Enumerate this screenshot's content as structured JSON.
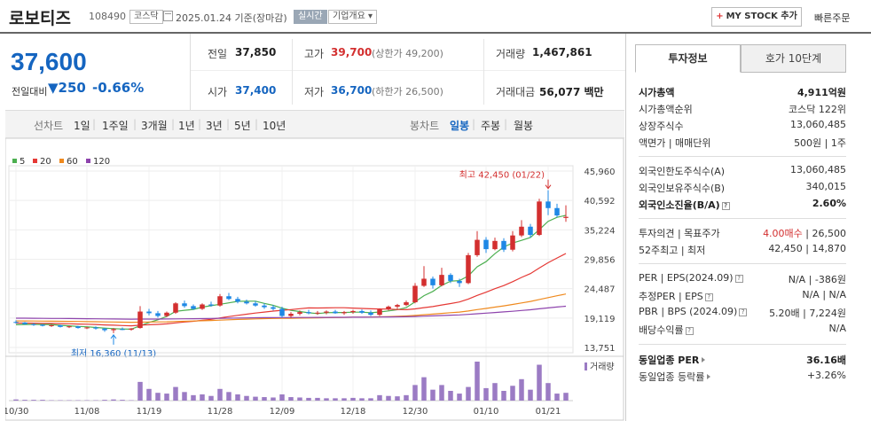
{
  "header": {
    "name": "로보티즈",
    "code": "108490",
    "market": "코스닥",
    "date": "2025.01.24 기준(장마감)",
    "live_badge": "실시간",
    "overview": "기업개요",
    "mystock": "MY STOCK 추가",
    "quick": "빠른주문"
  },
  "price": {
    "now": "37,600",
    "change_label": "전일대비",
    "change": "250",
    "pct": "-0.66%"
  },
  "quotes": {
    "prev_label": "전일",
    "prev": "37,850",
    "high_label": "고가",
    "high": "39,700",
    "upper_limit": "(상한가 49,200)",
    "volume_label": "거래량",
    "volume": "1,467,861",
    "open_label": "시가",
    "open": "37,400",
    "low_label": "저가",
    "low": "36,700",
    "lower_limit": "(하한가 26,500)",
    "amount_label": "거래대금",
    "amount": "56,077 백만"
  },
  "tabs": {
    "line": "선차트",
    "periods": [
      "1일",
      "1주일",
      "3개월",
      "1년",
      "3년",
      "5년",
      "10년"
    ],
    "candle": "봉차트",
    "candles": [
      "일봉",
      "주봉",
      "월봉"
    ],
    "selected_candle": "일봉"
  },
  "side": {
    "tab_active": "투자정보",
    "tab_inactive": "호가 10단계",
    "market_cap_label": "시가총액",
    "market_cap": "4,911억원",
    "rank_label": "시가총액순위",
    "rank": "코스닥 122위",
    "shares_label": "상장주식수",
    "shares": "13,060,485",
    "par_label": "액면가 | 매매단위",
    "par": "500원 | 1주",
    "foreign_limit_label": "외국인한도주식수(A)",
    "foreign_limit": "13,060,485",
    "foreign_hold_label": "외국인보유주식수(B)",
    "foreign_hold": "340,015",
    "foreign_ratio_label": "외국인소진율(B/A)",
    "foreign_ratio": "2.60%",
    "opinion_label": "투자의견 | 목표주가",
    "opinion": "4.00매수",
    "target": "26,500",
    "w52_label": "52주최고 | 최저",
    "w52": "42,450 | 14,870",
    "per_label": "PER | EPS(2024.09)",
    "per": "N/A | -386원",
    "est_per_label": "추정PER | EPS",
    "est_per": "N/A | N/A",
    "pbr_label": "PBR | BPS (2024.09)",
    "pbr": "5.20배 | 7,224원",
    "div_label": "배당수익률",
    "div": "N/A",
    "sector_per_label": "동일업종 PER",
    "sector_per": "36.16배",
    "sector_rate_label": "동일업종 등락률",
    "sector_rate": "+3.26%"
  },
  "colors": {
    "up": "#d32f2f",
    "down": "#1e88e5",
    "ma5": "#4caf50",
    "ma20": "#e53935",
    "ma60": "#ef8a1f",
    "ma120": "#8e44ad",
    "volume": "#9b7bc4"
  },
  "chart_data": {
    "type": "candlestick",
    "legend": [
      "5",
      "20",
      "60",
      "120"
    ],
    "y_ticks": [
      "45,960",
      "40,592",
      "35,224",
      "29,856",
      "24,487",
      "19,119",
      "13,751"
    ],
    "ylim": [
      13751,
      45960
    ],
    "x_labels": [
      "10/30",
      "11/08",
      "11/19",
      "11/28",
      "12/09",
      "12/18",
      "12/30",
      "01/10",
      "01/21"
    ],
    "high_annotation": "최고 42,450 (01/22)",
    "low_annotation": "최저 16,360 (11/13)",
    "volume_label": "거래량",
    "candles": [
      [
        18400,
        18700,
        18100,
        18300
      ],
      [
        18300,
        18400,
        17900,
        18000
      ],
      [
        18000,
        18200,
        17700,
        17900
      ],
      [
        17900,
        18000,
        17600,
        17700
      ],
      [
        17700,
        17900,
        17500,
        17800
      ],
      [
        17800,
        17900,
        17400,
        17500
      ],
      [
        17500,
        17700,
        17300,
        17600
      ],
      [
        17600,
        17700,
        17200,
        17300
      ],
      [
        17300,
        17500,
        17100,
        17400
      ],
      [
        17400,
        17600,
        17000,
        17200
      ],
      [
        17200,
        17300,
        16600,
        16900
      ],
      [
        16900,
        17300,
        16360,
        17100
      ],
      [
        17100,
        17400,
        16900,
        17000
      ],
      [
        17000,
        17300,
        16800,
        17200
      ],
      [
        17300,
        21300,
        17200,
        20300
      ],
      [
        20300,
        20800,
        19600,
        20000
      ],
      [
        20000,
        20400,
        19200,
        19500
      ],
      [
        19500,
        20300,
        19300,
        20100
      ],
      [
        20100,
        22000,
        19900,
        21800
      ],
      [
        21800,
        22300,
        21000,
        21300
      ],
      [
        21300,
        21600,
        20600,
        20800
      ],
      [
        20800,
        21800,
        20600,
        21600
      ],
      [
        21600,
        22100,
        21200,
        21400
      ],
      [
        21400,
        23500,
        21200,
        23100
      ],
      [
        23100,
        23700,
        22400,
        22600
      ],
      [
        22600,
        23000,
        21800,
        22100
      ],
      [
        22100,
        22500,
        21600,
        21800
      ],
      [
        21800,
        22200,
        21200,
        21400
      ],
      [
        21400,
        21800,
        20800,
        21100
      ],
      [
        21100,
        21500,
        20500,
        20800
      ],
      [
        20800,
        21200,
        19200,
        19500
      ],
      [
        19500,
        20200,
        19200,
        19900
      ],
      [
        19900,
        20500,
        19600,
        20200
      ],
      [
        20200,
        20600,
        19800,
        20000
      ],
      [
        20000,
        20400,
        19700,
        20100
      ],
      [
        20100,
        20500,
        19800,
        20300
      ],
      [
        20300,
        20600,
        19900,
        20000
      ],
      [
        20000,
        20400,
        19700,
        20200
      ],
      [
        20200,
        20600,
        19900,
        20400
      ],
      [
        20400,
        20700,
        19900,
        20100
      ],
      [
        20100,
        20500,
        19500,
        19700
      ],
      [
        19700,
        20900,
        19500,
        20700
      ],
      [
        20700,
        21400,
        20500,
        21200
      ],
      [
        21200,
        21700,
        20800,
        21500
      ],
      [
        21500,
        22300,
        21300,
        22000
      ],
      [
        22000,
        25500,
        21800,
        25000
      ],
      [
        25000,
        28600,
        24800,
        26300
      ],
      [
        26300,
        26700,
        24500,
        25100
      ],
      [
        25100,
        28300,
        24900,
        27000
      ],
      [
        27000,
        27300,
        25500,
        25900
      ],
      [
        25900,
        26300,
        24800,
        25500
      ],
      [
        25500,
        31000,
        25300,
        30600
      ],
      [
        30600,
        35000,
        30300,
        33400
      ],
      [
        33400,
        33900,
        31000,
        31700
      ],
      [
        31700,
        33800,
        31500,
        33200
      ],
      [
        33200,
        33700,
        31200,
        31600
      ],
      [
        31600,
        35000,
        31300,
        34200
      ],
      [
        34200,
        37000,
        33900,
        35800
      ],
      [
        35800,
        36300,
        33800,
        34300
      ],
      [
        34300,
        40900,
        34100,
        40400
      ],
      [
        40400,
        42450,
        37900,
        39200
      ],
      [
        39200,
        40000,
        37500,
        37850
      ],
      [
        37400,
        39700,
        36700,
        37600
      ]
    ],
    "volumes": [
      3,
      2,
      2,
      2,
      1,
      1,
      1,
      1,
      1,
      1,
      2,
      3,
      2,
      1,
      48,
      30,
      20,
      18,
      35,
      22,
      14,
      16,
      12,
      30,
      22,
      16,
      12,
      10,
      9,
      8,
      16,
      9,
      8,
      7,
      7,
      6,
      6,
      6,
      7,
      6,
      6,
      14,
      12,
      11,
      14,
      40,
      60,
      28,
      40,
      25,
      18,
      35,
      100,
      32,
      45,
      25,
      38,
      55,
      28,
      92,
      45,
      18,
      20
    ]
  }
}
